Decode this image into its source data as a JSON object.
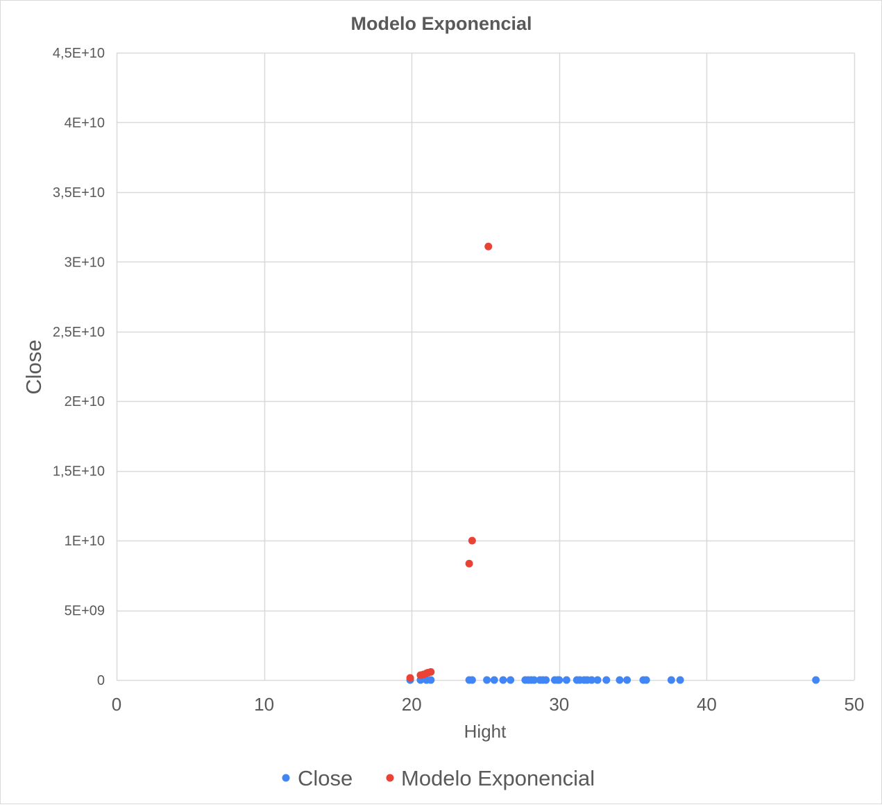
{
  "chart_data": {
    "type": "scatter",
    "title": "Modelo Exponencial",
    "xlabel": "Hight",
    "ylabel": "Close",
    "xlim": [
      0,
      50
    ],
    "ylim": [
      0,
      45000000000
    ],
    "x_ticks": [
      0,
      10,
      20,
      30,
      40,
      50
    ],
    "x_tick_labels": [
      "0",
      "10",
      "20",
      "30",
      "40",
      "50"
    ],
    "y_ticks": [
      0,
      5000000000,
      10000000000,
      15000000000,
      20000000000,
      25000000000,
      30000000000,
      35000000000,
      40000000000,
      45000000000
    ],
    "y_tick_labels": [
      "0",
      "5E+09",
      "1E+10",
      "1,5E+10",
      "2E+10",
      "2,5E+10",
      "3E+10",
      "3,5E+10",
      "4E+10",
      "4,5E+10"
    ],
    "grid": true,
    "legend_position": "bottom",
    "series": [
      {
        "name": "Close",
        "color": "#4285f4",
        "points": [
          [
            19.9,
            0
          ],
          [
            20.6,
            0
          ],
          [
            21.0,
            0
          ],
          [
            21.3,
            0
          ],
          [
            23.9,
            0
          ],
          [
            24.1,
            0
          ],
          [
            25.1,
            0
          ],
          [
            25.6,
            0
          ],
          [
            26.2,
            0
          ],
          [
            26.7,
            0
          ],
          [
            27.7,
            0
          ],
          [
            27.9,
            0
          ],
          [
            28.1,
            0
          ],
          [
            28.3,
            0
          ],
          [
            28.7,
            0
          ],
          [
            28.9,
            0
          ],
          [
            29.1,
            0
          ],
          [
            29.7,
            0
          ],
          [
            29.9,
            0
          ],
          [
            30.0,
            0
          ],
          [
            30.5,
            0
          ],
          [
            31.2,
            0
          ],
          [
            31.4,
            0
          ],
          [
            31.7,
            0
          ],
          [
            31.9,
            0
          ],
          [
            32.2,
            0
          ],
          [
            32.6,
            0
          ],
          [
            33.2,
            0
          ],
          [
            34.1,
            0
          ],
          [
            34.6,
            0
          ],
          [
            35.7,
            0
          ],
          [
            35.9,
            0
          ],
          [
            37.6,
            0
          ],
          [
            38.2,
            0
          ],
          [
            47.4,
            0
          ]
        ]
      },
      {
        "name": "Modelo Exponencial",
        "color": "#ea4335",
        "points": [
          [
            19.9,
            150000000
          ],
          [
            20.6,
            350000000
          ],
          [
            20.8,
            400000000
          ],
          [
            21.0,
            480000000
          ],
          [
            21.1,
            520000000
          ],
          [
            21.3,
            580000000
          ],
          [
            23.9,
            8350000000
          ],
          [
            24.1,
            10000000000
          ],
          [
            25.2,
            31100000000
          ]
        ]
      }
    ]
  }
}
